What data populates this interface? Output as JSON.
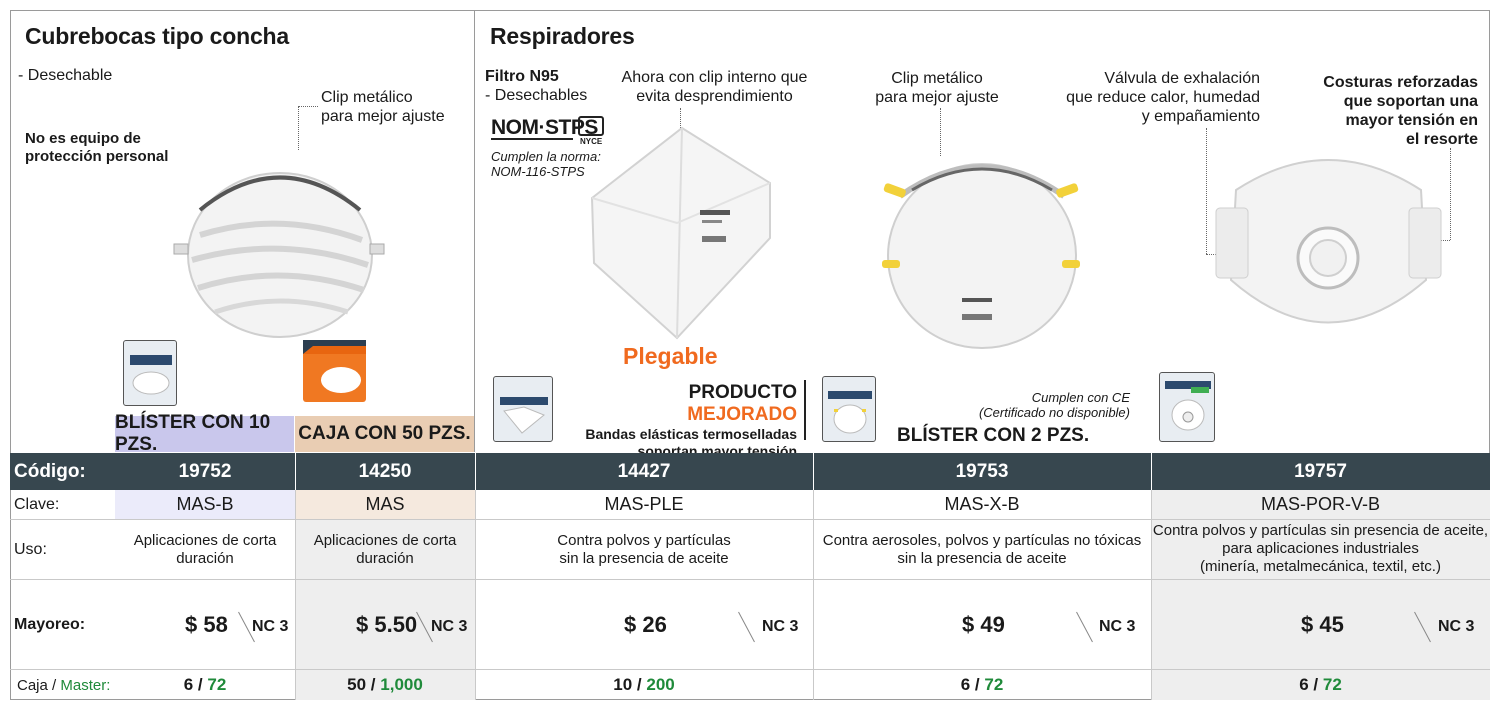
{
  "left": {
    "title": "Cubrebocas tipo concha",
    "feature": "- Desechable",
    "clip_note": [
      "Clip metálico",
      "para mejor ajuste"
    ],
    "warning": [
      "No es equipo de",
      "protección personal"
    ],
    "pack_blister": "BLÍSTER CON 10 PZS.",
    "pack_caja": "CAJA CON 50 PZS."
  },
  "right": {
    "title": "Respiradores",
    "features": [
      "Filtro N95",
      "- Desechables"
    ],
    "nom_logo": "NOM·STPS",
    "nyce": "NYCE",
    "norma": [
      "Cumplen la norma:",
      "NOM-116-STPS"
    ],
    "clip_interno": [
      "Ahora con clip interno que",
      "evita desprendimiento"
    ],
    "plegable": "Plegable",
    "mejorado_a": "PRODUCTO",
    "mejorado_b": "MEJORADO",
    "bandas": [
      "Bandas elásticas termoselladas",
      "soportan mayor tensión"
    ],
    "clip_x": [
      "Clip metálico",
      "para mejor ajuste"
    ],
    "ce": [
      "Cumplen con CE",
      "(Certificado no disponible)"
    ],
    "pack_blister2": "BLÍSTER CON 2 PZS.",
    "valvula": [
      "Válvula de exhalación",
      "que reduce calor, humedad",
      "y empañamiento"
    ],
    "costuras": [
      "Costuras reforzadas",
      "que soportan una",
      "mayor tensión en",
      "el resorte"
    ]
  },
  "table": {
    "labels": {
      "codigo": "Código:",
      "clave": "Clave:",
      "uso": "Uso:",
      "mayoreo": "Mayoreo:",
      "caja": "Caja /",
      "master": "Master:"
    },
    "products": [
      {
        "codigo": "19752",
        "clave": "MAS-B",
        "uso": [
          "Aplicaciones de corta",
          "duración"
        ],
        "precio": "$ 58",
        "nc": "NC 3",
        "caja": "6 /",
        "master": "72"
      },
      {
        "codigo": "14250",
        "clave": "MAS",
        "uso": [
          "Aplicaciones de corta",
          "duración"
        ],
        "precio": "$ 5.50",
        "nc": "NC 3",
        "caja": "50 /",
        "master": "1,000"
      },
      {
        "codigo": "14427",
        "clave": "MAS-PLE",
        "uso": [
          "Contra polvos y partículas",
          "sin la presencia de aceite"
        ],
        "precio": "$ 26",
        "nc": "NC 3",
        "caja": "10 /",
        "master": "200"
      },
      {
        "codigo": "19753",
        "clave": "MAS-X-B",
        "uso": [
          "Contra aerosoles, polvos y partículas no tóxicas",
          "sin la presencia de aceite"
        ],
        "precio": "$ 49",
        "nc": "NC 3",
        "caja": "6 /",
        "master": "72"
      },
      {
        "codigo": "19757",
        "clave": "MAS-POR-V-B",
        "uso": [
          "Contra polvos y partículas sin presencia de aceite,",
          "para aplicaciones industriales",
          "(minería, metalmecánica, textil, etc.)"
        ],
        "precio": "$ 45",
        "nc": "NC 3",
        "caja": "6 /",
        "master": "72"
      }
    ]
  },
  "colors": {
    "header_bg": "#37474f",
    "accent_orange": "#f06a1f",
    "master_green": "#1f8a3a",
    "blister_bg": "#c9c7ec",
    "caja_bg": "#e9cdb3",
    "clave_blister_bg": "#ebebfa",
    "clave_caja_bg": "#f5e9de",
    "shaded_col": "#eeeeee"
  }
}
